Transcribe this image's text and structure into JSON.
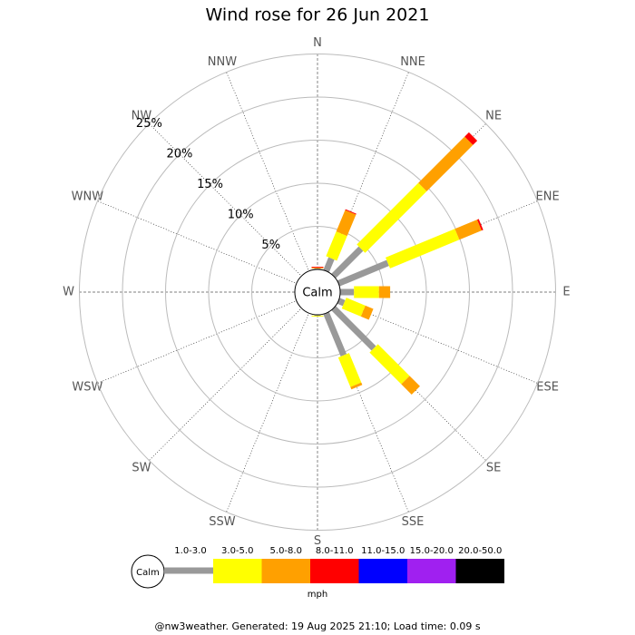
{
  "chart_data": {
    "type": "wind_rose",
    "title": "Wind rose for 26 Jun 2021",
    "directions": [
      "N",
      "NNE",
      "NE",
      "ENE",
      "E",
      "ESE",
      "SE",
      "SSE",
      "S",
      "SSW",
      "SW",
      "WSW",
      "W",
      "WNW",
      "NW",
      "NNW"
    ],
    "calm_label": "Calm",
    "units": "mph",
    "rlim": [
      0,
      25
    ],
    "rticks": [
      {
        "value": 5,
        "label": "5%"
      },
      {
        "value": 10,
        "label": "10%"
      },
      {
        "value": 15,
        "label": "15%"
      },
      {
        "value": 20,
        "label": "20%"
      },
      {
        "value": 25,
        "label": "25%"
      }
    ],
    "series": [
      {
        "name": "1.0-3.0",
        "color": "#999999",
        "values": [
          0.1,
          1.6,
          4.5,
          6.2,
          1.6,
          0.7,
          6.6,
          5.3,
          0.1,
          0,
          0,
          0,
          0,
          0,
          0,
          0
        ]
      },
      {
        "name": "3.0-5.0",
        "color": "#ffff00",
        "values": [
          0,
          3.1,
          10.1,
          8.7,
          2.9,
          2.4,
          5.2,
          3.7,
          0.1,
          0,
          0,
          0,
          0,
          0,
          0,
          0
        ]
      },
      {
        "name": "5.0-8.0",
        "color": "#ffa000",
        "values": [
          0.1,
          2.7,
          7.6,
          2.8,
          1.3,
          1.0,
          1.7,
          0.3,
          0,
          0,
          0,
          0,
          0,
          0,
          0,
          0
        ]
      },
      {
        "name": "8.0-11.0",
        "color": "#ff0000",
        "values": [
          0.1,
          0.1,
          0.7,
          0.2,
          0,
          0,
          0,
          0,
          0,
          0,
          0,
          0,
          0,
          0,
          0,
          0
        ]
      },
      {
        "name": "11.0-15.0",
        "color": "#0000ff",
        "values": [
          0,
          0,
          0,
          0,
          0,
          0,
          0,
          0,
          0,
          0,
          0,
          0,
          0,
          0,
          0,
          0
        ]
      },
      {
        "name": "15.0-20.0",
        "color": "#a020f0",
        "values": [
          0,
          0,
          0,
          0,
          0,
          0,
          0,
          0,
          0,
          0,
          0,
          0,
          0,
          0,
          0,
          0
        ]
      },
      {
        "name": "20.0-50.0",
        "color": "#000000",
        "values": [
          0,
          0,
          0,
          0,
          0,
          0,
          0,
          0,
          0,
          0,
          0,
          0,
          0,
          0,
          0,
          0
        ]
      }
    ]
  },
  "footer": "@nw3weather. Generated: 19 Aug 2025 21:10; Load time: 0.09 s"
}
